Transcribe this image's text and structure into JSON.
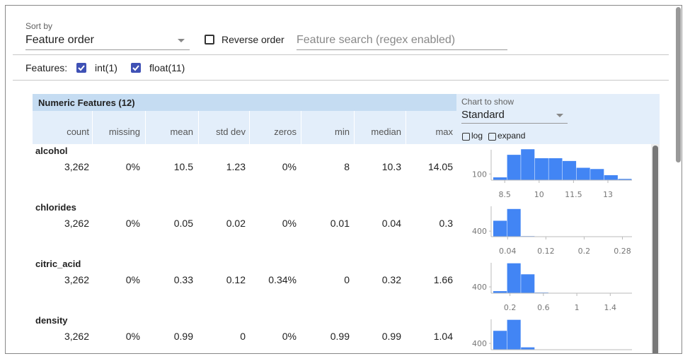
{
  "controls": {
    "sort_label": "Sort by",
    "sort_value": "Feature order",
    "reverse_label": "Reverse order",
    "search_placeholder": "Feature search (regex enabled)",
    "features_label": "Features:",
    "feature_filters": [
      "int(1)",
      "float(11)"
    ]
  },
  "table": {
    "title": "Numeric Features (12)",
    "columns": [
      "count",
      "missing",
      "mean",
      "std dev",
      "zeros",
      "min",
      "median",
      "max"
    ],
    "chart_label": "Chart to show",
    "chart_value": "Standard",
    "chart_options": [
      "log",
      "expand"
    ],
    "rows": [
      {
        "name": "alcohol",
        "values": [
          "3,262",
          "0%",
          "10.5",
          "1.23",
          "0%",
          "8",
          "10.3",
          "14.05"
        ],
        "histogram": {
          "type": "bar",
          "color": "#4285f4",
          "values": [
            45,
            410,
            500,
            355,
            355,
            310,
            200,
            180,
            80,
            20
          ],
          "xlim": [
            8,
            14.05
          ],
          "xticks": [
            8.5,
            10,
            11.5,
            13
          ],
          "ylim": [
            0,
            560
          ],
          "yticks": [
            100
          ]
        }
      },
      {
        "name": "chlorides",
        "values": [
          "3,262",
          "0%",
          "0.05",
          "0.02",
          "0%",
          "0.01",
          "0.04",
          "0.3"
        ],
        "histogram": {
          "type": "bar",
          "color": "#4285f4",
          "values": [
            1150,
            2000,
            40,
            20,
            10,
            10,
            5,
            5,
            5,
            5
          ],
          "xlim": [
            0.01,
            0.3
          ],
          "xticks": [
            0.04,
            0.12,
            0.2,
            0.28
          ],
          "ylim": [
            0,
            2500
          ],
          "yticks": [
            400
          ]
        }
      },
      {
        "name": "citric_acid",
        "values": [
          "3,262",
          "0%",
          "0.33",
          "0.12",
          "0.34%",
          "0",
          "0.32",
          "1.66"
        ],
        "histogram": {
          "type": "bar",
          "color": "#4285f4",
          "values": [
            130,
            1900,
            1200,
            40,
            10,
            5,
            0,
            0,
            0,
            2
          ],
          "xlim": [
            0,
            1.66
          ],
          "xticks": [
            0.2,
            0.6,
            1,
            1.4
          ],
          "ylim": [
            0,
            2200
          ],
          "yticks": [
            400
          ]
        }
      },
      {
        "name": "density",
        "values": [
          "3,262",
          "0%",
          "0.99",
          "0",
          "0%",
          "0.99",
          "0.99",
          "1.04"
        ],
        "histogram": {
          "type": "bar",
          "color": "#4285f4",
          "values": [
            1200,
            1900,
            150,
            10,
            5,
            0,
            0,
            0,
            0,
            2
          ],
          "xlim": [
            0.99,
            1.04
          ],
          "xticks": [],
          "ylim": [
            0,
            2200
          ],
          "yticks": [
            400
          ]
        }
      }
    ]
  }
}
